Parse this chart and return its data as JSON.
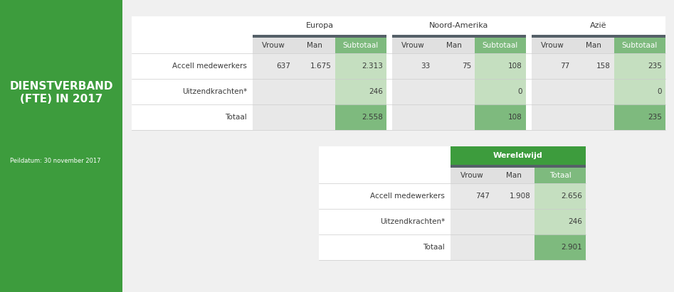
{
  "title_line1": "DIENSTVERBAND",
  "title_line2": "(FTE) IN 2017",
  "subtitle": "Peildatum: 30 november 2017",
  "sidebar_bg": "#3d9c3d",
  "sidebar_text_color": "#ffffff",
  "bg_color": "#f0f0f0",
  "green_header_bg": "#3d9c3d",
  "dark_sep_color": "#556068",
  "light_green_bg": "#c5dfc0",
  "medium_green_bg": "#7eba7e",
  "col_header_bg": "#e0e0e0",
  "cell_bg": "#e8e8e8",
  "white": "#ffffff",
  "text_dark": "#3a3a3a",
  "text_green": "#1a3a1a",
  "top_table": {
    "regions": [
      "Europa",
      "Noord-Amerika",
      "Azië"
    ],
    "col_headers": [
      "Vrouw",
      "Man",
      "Subtotaal"
    ],
    "rows": [
      {
        "label": "Accell medewerkers",
        "europa": [
          "637",
          "1.675",
          "2.313"
        ],
        "noord_amerika": [
          "33",
          "75",
          "108"
        ],
        "azie": [
          "77",
          "158",
          "235"
        ]
      },
      {
        "label": "Uitzendkrachten*",
        "europa": [
          "",
          "",
          "246"
        ],
        "noord_amerika": [
          "",
          "",
          "0"
        ],
        "azie": [
          "",
          "",
          "0"
        ]
      },
      {
        "label": "Totaal",
        "europa": [
          "",
          "",
          "2.558"
        ],
        "noord_amerika": [
          "",
          "",
          "108"
        ],
        "azie": [
          "",
          "",
          "235"
        ]
      }
    ]
  },
  "bottom_table": {
    "region": "Wereldwijd",
    "col_headers": [
      "Vrouw",
      "Man",
      "Totaal"
    ],
    "rows": [
      {
        "label": "Accell medewerkers",
        "values": [
          "747",
          "1.908",
          "2.656"
        ]
      },
      {
        "label": "Uitzendkrachten*",
        "values": [
          "",
          "",
          "246"
        ]
      },
      {
        "label": "Totaal",
        "values": [
          "",
          "",
          "2.901"
        ]
      }
    ]
  }
}
